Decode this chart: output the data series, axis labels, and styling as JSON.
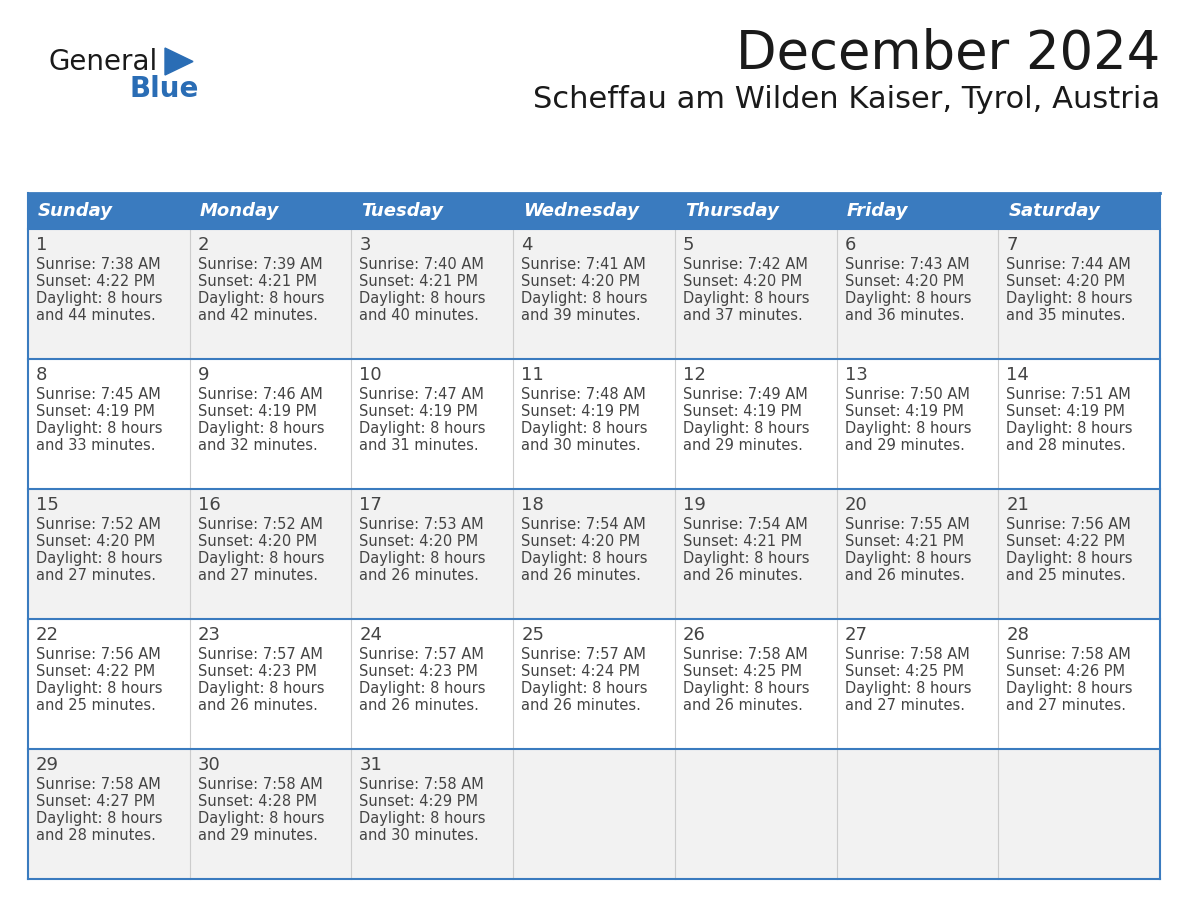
{
  "title": "December 2024",
  "subtitle": "Scheffau am Wilden Kaiser, Tyrol, Austria",
  "header_bg_color": "#3a7bbf",
  "header_text_color": "#ffffff",
  "day_names": [
    "Sunday",
    "Monday",
    "Tuesday",
    "Wednesday",
    "Thursday",
    "Friday",
    "Saturday"
  ],
  "row_bg_colors": [
    "#f2f2f2",
    "#ffffff",
    "#f2f2f2",
    "#ffffff",
    "#f2f2f2"
  ],
  "cell_border_color": "#3a7bbf",
  "grid_line_color": "#cccccc",
  "text_color": "#444444",
  "days": [
    {
      "day": 1,
      "col": 0,
      "row": 0,
      "sunrise": "7:38 AM",
      "sunset": "4:22 PM",
      "dl_tail": "44 minutes."
    },
    {
      "day": 2,
      "col": 1,
      "row": 0,
      "sunrise": "7:39 AM",
      "sunset": "4:21 PM",
      "dl_tail": "42 minutes."
    },
    {
      "day": 3,
      "col": 2,
      "row": 0,
      "sunrise": "7:40 AM",
      "sunset": "4:21 PM",
      "dl_tail": "40 minutes."
    },
    {
      "day": 4,
      "col": 3,
      "row": 0,
      "sunrise": "7:41 AM",
      "sunset": "4:20 PM",
      "dl_tail": "39 minutes."
    },
    {
      "day": 5,
      "col": 4,
      "row": 0,
      "sunrise": "7:42 AM",
      "sunset": "4:20 PM",
      "dl_tail": "37 minutes."
    },
    {
      "day": 6,
      "col": 5,
      "row": 0,
      "sunrise": "7:43 AM",
      "sunset": "4:20 PM",
      "dl_tail": "36 minutes."
    },
    {
      "day": 7,
      "col": 6,
      "row": 0,
      "sunrise": "7:44 AM",
      "sunset": "4:20 PM",
      "dl_tail": "35 minutes."
    },
    {
      "day": 8,
      "col": 0,
      "row": 1,
      "sunrise": "7:45 AM",
      "sunset": "4:19 PM",
      "dl_tail": "33 minutes."
    },
    {
      "day": 9,
      "col": 1,
      "row": 1,
      "sunrise": "7:46 AM",
      "sunset": "4:19 PM",
      "dl_tail": "32 minutes."
    },
    {
      "day": 10,
      "col": 2,
      "row": 1,
      "sunrise": "7:47 AM",
      "sunset": "4:19 PM",
      "dl_tail": "31 minutes."
    },
    {
      "day": 11,
      "col": 3,
      "row": 1,
      "sunrise": "7:48 AM",
      "sunset": "4:19 PM",
      "dl_tail": "30 minutes."
    },
    {
      "day": 12,
      "col": 4,
      "row": 1,
      "sunrise": "7:49 AM",
      "sunset": "4:19 PM",
      "dl_tail": "29 minutes."
    },
    {
      "day": 13,
      "col": 5,
      "row": 1,
      "sunrise": "7:50 AM",
      "sunset": "4:19 PM",
      "dl_tail": "29 minutes."
    },
    {
      "day": 14,
      "col": 6,
      "row": 1,
      "sunrise": "7:51 AM",
      "sunset": "4:19 PM",
      "dl_tail": "28 minutes."
    },
    {
      "day": 15,
      "col": 0,
      "row": 2,
      "sunrise": "7:52 AM",
      "sunset": "4:20 PM",
      "dl_tail": "27 minutes."
    },
    {
      "day": 16,
      "col": 1,
      "row": 2,
      "sunrise": "7:52 AM",
      "sunset": "4:20 PM",
      "dl_tail": "27 minutes."
    },
    {
      "day": 17,
      "col": 2,
      "row": 2,
      "sunrise": "7:53 AM",
      "sunset": "4:20 PM",
      "dl_tail": "26 minutes."
    },
    {
      "day": 18,
      "col": 3,
      "row": 2,
      "sunrise": "7:54 AM",
      "sunset": "4:20 PM",
      "dl_tail": "26 minutes."
    },
    {
      "day": 19,
      "col": 4,
      "row": 2,
      "sunrise": "7:54 AM",
      "sunset": "4:21 PM",
      "dl_tail": "26 minutes."
    },
    {
      "day": 20,
      "col": 5,
      "row": 2,
      "sunrise": "7:55 AM",
      "sunset": "4:21 PM",
      "dl_tail": "26 minutes."
    },
    {
      "day": 21,
      "col": 6,
      "row": 2,
      "sunrise": "7:56 AM",
      "sunset": "4:22 PM",
      "dl_tail": "25 minutes."
    },
    {
      "day": 22,
      "col": 0,
      "row": 3,
      "sunrise": "7:56 AM",
      "sunset": "4:22 PM",
      "dl_tail": "25 minutes."
    },
    {
      "day": 23,
      "col": 1,
      "row": 3,
      "sunrise": "7:57 AM",
      "sunset": "4:23 PM",
      "dl_tail": "26 minutes."
    },
    {
      "day": 24,
      "col": 2,
      "row": 3,
      "sunrise": "7:57 AM",
      "sunset": "4:23 PM",
      "dl_tail": "26 minutes."
    },
    {
      "day": 25,
      "col": 3,
      "row": 3,
      "sunrise": "7:57 AM",
      "sunset": "4:24 PM",
      "dl_tail": "26 minutes."
    },
    {
      "day": 26,
      "col": 4,
      "row": 3,
      "sunrise": "7:58 AM",
      "sunset": "4:25 PM",
      "dl_tail": "26 minutes."
    },
    {
      "day": 27,
      "col": 5,
      "row": 3,
      "sunrise": "7:58 AM",
      "sunset": "4:25 PM",
      "dl_tail": "27 minutes."
    },
    {
      "day": 28,
      "col": 6,
      "row": 3,
      "sunrise": "7:58 AM",
      "sunset": "4:26 PM",
      "dl_tail": "27 minutes."
    },
    {
      "day": 29,
      "col": 0,
      "row": 4,
      "sunrise": "7:58 AM",
      "sunset": "4:27 PM",
      "dl_tail": "28 minutes."
    },
    {
      "day": 30,
      "col": 1,
      "row": 4,
      "sunrise": "7:58 AM",
      "sunset": "4:28 PM",
      "dl_tail": "29 minutes."
    },
    {
      "day": 31,
      "col": 2,
      "row": 4,
      "sunrise": "7:58 AM",
      "sunset": "4:29 PM",
      "dl_tail": "30 minutes."
    }
  ],
  "logo_general_color": "#1a1a1a",
  "logo_blue_color": "#2a6db5",
  "figw": 11.88,
  "figh": 9.18,
  "dpi": 100
}
